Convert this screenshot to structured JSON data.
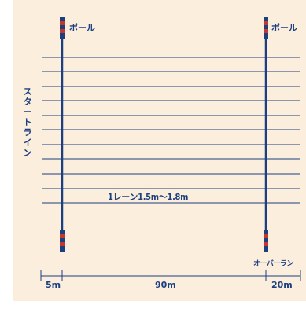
{
  "labels": {
    "pole_left": "ポール",
    "pole_right": "ポール",
    "lane_width": "1レーン1.5m～1.8m",
    "start_line": "スタートライン",
    "overrun": "オーバーラン"
  },
  "dimensions": {
    "start_offset": "5m",
    "main_distance": "90m",
    "overrun_distance": "20m"
  },
  "colors": {
    "background": "#fbeedd",
    "line_blue": "#1c3f80",
    "pole_red": "#c0392b"
  }
}
